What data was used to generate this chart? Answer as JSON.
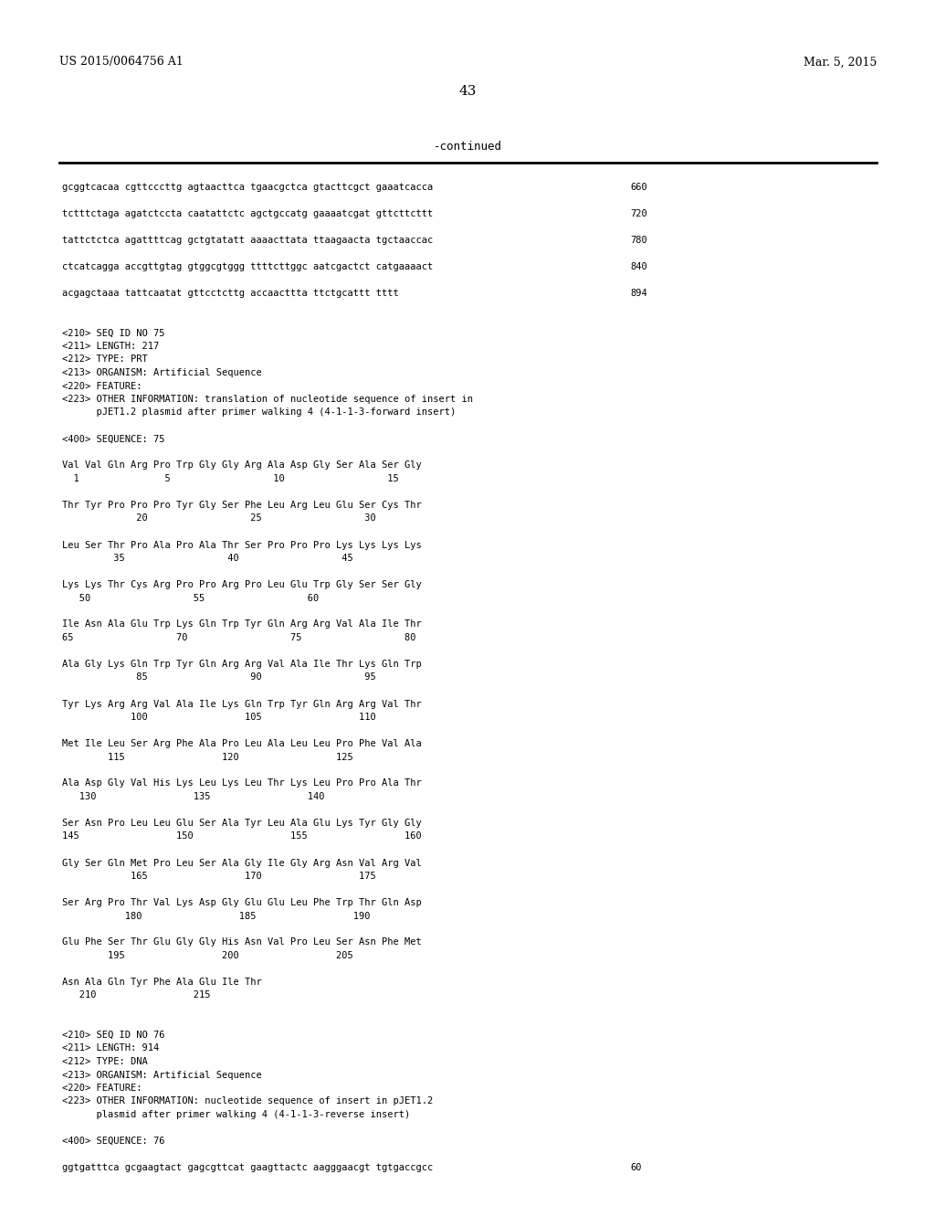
{
  "bg_color": "#ffffff",
  "header_left": "US 2015/0064756 A1",
  "header_right": "Mar. 5, 2015",
  "page_number": "43",
  "continued": "-continued",
  "lines": [
    {
      "text": "gcggtcacaa cgttcccttg agtaacttca tgaacgctca gtacttcgct gaaatcacca",
      "num": "660"
    },
    {
      "text": "",
      "num": ""
    },
    {
      "text": "tctttctaga agatctccta caatattctc agctgccatg gaaaatcgat gttcttcttt",
      "num": "720"
    },
    {
      "text": "",
      "num": ""
    },
    {
      "text": "tattctctca agattttcag gctgtatatt aaaacttata ttaagaacta tgctaaccac",
      "num": "780"
    },
    {
      "text": "",
      "num": ""
    },
    {
      "text": "ctcatcagga accgttgtag gtggcgtggg ttttcttggc aatcgactct catgaaaact",
      "num": "840"
    },
    {
      "text": "",
      "num": ""
    },
    {
      "text": "acgagctaaa tattcaatat gttcctcttg accaacttta ttctgcattt tttt",
      "num": "894"
    },
    {
      "text": "",
      "num": ""
    },
    {
      "text": "",
      "num": ""
    },
    {
      "text": "<210> SEQ ID NO 75",
      "num": ""
    },
    {
      "text": "<211> LENGTH: 217",
      "num": ""
    },
    {
      "text": "<212> TYPE: PRT",
      "num": ""
    },
    {
      "text": "<213> ORGANISM: Artificial Sequence",
      "num": ""
    },
    {
      "text": "<220> FEATURE:",
      "num": ""
    },
    {
      "text": "<223> OTHER INFORMATION: translation of nucleotide sequence of insert in",
      "num": ""
    },
    {
      "text": "      pJET1.2 plasmid after primer walking 4 (4-1-1-3-forward insert)",
      "num": ""
    },
    {
      "text": "",
      "num": ""
    },
    {
      "text": "<400> SEQUENCE: 75",
      "num": ""
    },
    {
      "text": "",
      "num": ""
    },
    {
      "text": "Val Val Gln Arg Pro Trp Gly Gly Arg Ala Asp Gly Ser Ala Ser Gly",
      "num": ""
    },
    {
      "text": "  1               5                  10                  15",
      "num": ""
    },
    {
      "text": "",
      "num": ""
    },
    {
      "text": "Thr Tyr Pro Pro Pro Tyr Gly Ser Phe Leu Arg Leu Glu Ser Cys Thr",
      "num": ""
    },
    {
      "text": "             20                  25                  30",
      "num": ""
    },
    {
      "text": "",
      "num": ""
    },
    {
      "text": "Leu Ser Thr Pro Ala Pro Ala Thr Ser Pro Pro Pro Lys Lys Lys Lys",
      "num": ""
    },
    {
      "text": "         35                  40                  45",
      "num": ""
    },
    {
      "text": "",
      "num": ""
    },
    {
      "text": "Lys Lys Thr Cys Arg Pro Pro Arg Pro Leu Glu Trp Gly Ser Ser Gly",
      "num": ""
    },
    {
      "text": "   50                  55                  60",
      "num": ""
    },
    {
      "text": "",
      "num": ""
    },
    {
      "text": "Ile Asn Ala Glu Trp Lys Gln Trp Tyr Gln Arg Arg Val Ala Ile Thr",
      "num": ""
    },
    {
      "text": "65                  70                  75                  80",
      "num": ""
    },
    {
      "text": "",
      "num": ""
    },
    {
      "text": "Ala Gly Lys Gln Trp Tyr Gln Arg Arg Val Ala Ile Thr Lys Gln Trp",
      "num": ""
    },
    {
      "text": "             85                  90                  95",
      "num": ""
    },
    {
      "text": "",
      "num": ""
    },
    {
      "text": "Tyr Lys Arg Arg Val Ala Ile Lys Gln Trp Tyr Gln Arg Arg Val Thr",
      "num": ""
    },
    {
      "text": "            100                 105                 110",
      "num": ""
    },
    {
      "text": "",
      "num": ""
    },
    {
      "text": "Met Ile Leu Ser Arg Phe Ala Pro Leu Ala Leu Leu Pro Phe Val Ala",
      "num": ""
    },
    {
      "text": "        115                 120                 125",
      "num": ""
    },
    {
      "text": "",
      "num": ""
    },
    {
      "text": "Ala Asp Gly Val His Lys Leu Lys Leu Thr Lys Leu Pro Pro Ala Thr",
      "num": ""
    },
    {
      "text": "   130                 135                 140",
      "num": ""
    },
    {
      "text": "",
      "num": ""
    },
    {
      "text": "Ser Asn Pro Leu Leu Glu Ser Ala Tyr Leu Ala Glu Lys Tyr Gly Gly",
      "num": ""
    },
    {
      "text": "145                 150                 155                 160",
      "num": ""
    },
    {
      "text": "",
      "num": ""
    },
    {
      "text": "Gly Ser Gln Met Pro Leu Ser Ala Gly Ile Gly Arg Asn Val Arg Val",
      "num": ""
    },
    {
      "text": "            165                 170                 175",
      "num": ""
    },
    {
      "text": "",
      "num": ""
    },
    {
      "text": "Ser Arg Pro Thr Val Lys Asp Gly Glu Glu Leu Phe Trp Thr Gln Asp",
      "num": ""
    },
    {
      "text": "           180                 185                 190",
      "num": ""
    },
    {
      "text": "",
      "num": ""
    },
    {
      "text": "Glu Phe Ser Thr Glu Gly Gly His Asn Val Pro Leu Ser Asn Phe Met",
      "num": ""
    },
    {
      "text": "        195                 200                 205",
      "num": ""
    },
    {
      "text": "",
      "num": ""
    },
    {
      "text": "Asn Ala Gln Tyr Phe Ala Glu Ile Thr",
      "num": ""
    },
    {
      "text": "   210                 215",
      "num": ""
    },
    {
      "text": "",
      "num": ""
    },
    {
      "text": "",
      "num": ""
    },
    {
      "text": "<210> SEQ ID NO 76",
      "num": ""
    },
    {
      "text": "<211> LENGTH: 914",
      "num": ""
    },
    {
      "text": "<212> TYPE: DNA",
      "num": ""
    },
    {
      "text": "<213> ORGANISM: Artificial Sequence",
      "num": ""
    },
    {
      "text": "<220> FEATURE:",
      "num": ""
    },
    {
      "text": "<223> OTHER INFORMATION: nucleotide sequence of insert in pJET1.2",
      "num": ""
    },
    {
      "text": "      plasmid after primer walking 4 (4-1-1-3-reverse insert)",
      "num": ""
    },
    {
      "text": "",
      "num": ""
    },
    {
      "text": "<400> SEQUENCE: 76",
      "num": ""
    },
    {
      "text": "",
      "num": ""
    },
    {
      "text": "ggtgatttca gcgaagtact gagcgttcat gaagttactc aagggaacgt tgtgaccgcc",
      "num": "60"
    }
  ]
}
